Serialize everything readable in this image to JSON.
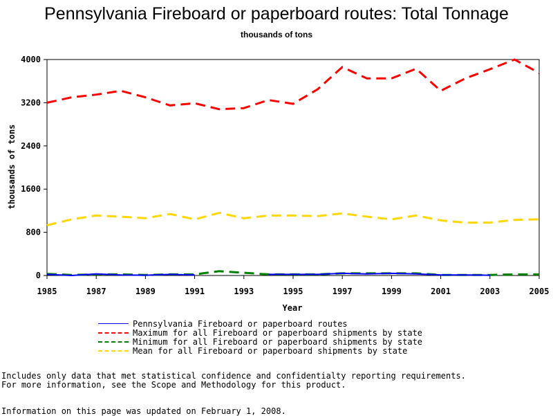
{
  "chart_data": {
    "type": "line",
    "title": "Pennsylvania Fireboard or paperboard routes: Total Tonnage",
    "subtitle": "thousands of tons",
    "xlabel": "Year",
    "ylabel": "thousands of tons",
    "x": [
      1985,
      1986,
      1987,
      1988,
      1989,
      1990,
      1991,
      1992,
      1993,
      1994,
      1995,
      1996,
      1997,
      1998,
      1999,
      2000,
      2001,
      2002,
      2003,
      2004,
      2005
    ],
    "xlim": [
      1985,
      2005
    ],
    "ylim": [
      0,
      4000
    ],
    "x_ticks": [
      "1985",
      "1987",
      "1989",
      "1991",
      "1993",
      "1995",
      "1997",
      "1999",
      "2001",
      "2003",
      "2005"
    ],
    "y_ticks": [
      "0",
      "800",
      "1600",
      "2400",
      "3200",
      "4000"
    ],
    "series": [
      {
        "name": "Pennsylvania Fireboard or paperboard routes",
        "color": "#0000ff",
        "dash": "solid",
        "values": [
          20,
          0,
          30,
          10,
          5,
          20,
          10,
          null,
          null,
          20,
          20,
          20,
          40,
          30,
          40,
          30,
          10,
          10,
          5,
          null,
          null
        ]
      },
      {
        "name": "Maximum for all Fireboard or paperboard shipments by state",
        "color": "#ff0000",
        "dash": "long",
        "values": [
          3200,
          3300,
          3350,
          3420,
          3300,
          3150,
          3190,
          3080,
          3100,
          3250,
          3180,
          3450,
          3860,
          3650,
          3650,
          3830,
          3420,
          3650,
          3820,
          4000,
          3750
        ]
      },
      {
        "name": "Minimum for all Fireboard or paperboard shipments by state",
        "color": "#008000",
        "dash": "long",
        "values": [
          30,
          10,
          20,
          20,
          10,
          20,
          20,
          80,
          50,
          20,
          20,
          20,
          40,
          40,
          40,
          40,
          10,
          10,
          10,
          20,
          20
        ]
      },
      {
        "name": "Mean for all Fireboard or paperboard shipments by state",
        "color": "#ffd700",
        "dash": "long",
        "values": [
          930,
          1040,
          1110,
          1090,
          1060,
          1140,
          1040,
          1160,
          1060,
          1110,
          1110,
          1100,
          1150,
          1090,
          1040,
          1110,
          1020,
          980,
          980,
          1030,
          1040
        ]
      }
    ]
  },
  "footnotes": {
    "line1": "Includes only data that met statistical confidence and confidentialty reporting requirements.",
    "line2": "For more information, see the Scope and Methodology for this product.",
    "updated": "Information on this page was updated on February 1, 2008."
  }
}
